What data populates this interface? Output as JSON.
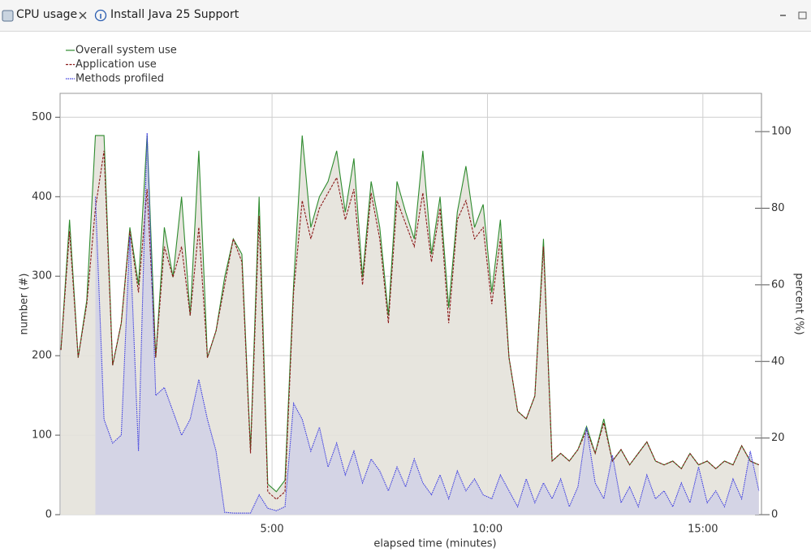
{
  "tabs": [
    {
      "label": "CPU usage"
    },
    {
      "label": "Install Java 25 Support"
    }
  ],
  "chart_data": {
    "type": "line",
    "xlabel": "elapsed time (minutes)",
    "ylabel": "number (#)",
    "y2label": "percent (%)",
    "x": [
      0.1,
      0.3,
      0.5,
      0.7,
      0.9,
      1.1,
      1.3,
      1.5,
      1.7,
      1.9,
      2.1,
      2.3,
      2.5,
      2.7,
      2.9,
      3.1,
      3.3,
      3.5,
      3.7,
      3.9,
      4.1,
      4.3,
      4.5,
      4.7,
      4.9,
      5.1,
      5.3,
      5.5,
      5.7,
      5.9,
      6.1,
      6.3,
      6.5,
      6.7,
      6.9,
      7.1,
      7.3,
      7.5,
      7.7,
      7.9,
      8.1,
      8.3,
      8.5,
      8.7,
      8.9,
      9.1,
      9.3,
      9.5,
      9.7,
      9.9,
      10.1,
      10.3,
      10.5,
      10.7,
      10.9,
      11.1,
      11.3,
      11.5,
      11.7,
      11.9,
      12.1,
      12.3,
      12.5,
      12.7,
      12.9,
      13.1,
      13.3,
      13.5,
      13.7,
      13.9,
      14.1,
      14.3,
      14.5,
      14.7,
      14.9,
      15.1,
      15.3,
      15.5,
      15.7,
      15.9,
      16.1,
      16.3
    ],
    "series": [
      {
        "name": "Overall system use",
        "color": "#2e8b2e",
        "axis": "y2",
        "values": [
          43,
          77,
          41,
          56,
          99,
          99,
          39,
          50,
          75,
          60,
          99,
          41,
          75,
          62,
          83,
          52,
          95,
          41,
          48,
          62,
          72,
          68,
          17,
          83,
          8,
          6,
          9,
          60,
          99,
          75,
          83,
          87,
          95,
          79,
          93,
          62,
          87,
          75,
          52,
          87,
          79,
          72,
          95,
          68,
          83,
          54,
          79,
          91,
          75,
          81,
          58,
          77,
          41,
          27,
          25,
          31,
          72,
          14,
          16,
          14,
          17,
          23,
          16,
          25,
          14,
          17,
          13,
          16,
          19,
          14,
          13,
          14,
          12,
          16,
          13,
          14,
          12,
          14,
          13,
          18,
          14,
          13
        ]
      },
      {
        "name": "Application use",
        "color": "#8b1a1a",
        "axis": "y2",
        "values": [
          43,
          74,
          41,
          55,
          80,
          95,
          39,
          50,
          74,
          58,
          85,
          41,
          70,
          62,
          70,
          52,
          75,
          41,
          48,
          60,
          72,
          66,
          16,
          78,
          6,
          4,
          6,
          58,
          82,
          72,
          80,
          84,
          88,
          77,
          85,
          60,
          84,
          72,
          50,
          82,
          76,
          70,
          84,
          66,
          80,
          50,
          77,
          82,
          72,
          75,
          55,
          72,
          41,
          27,
          25,
          31,
          70,
          14,
          16,
          14,
          17,
          22,
          16,
          24,
          14,
          17,
          13,
          16,
          19,
          14,
          13,
          14,
          12,
          16,
          13,
          14,
          12,
          14,
          13,
          18,
          14,
          13
        ]
      },
      {
        "name": "Methods profiled",
        "color": "#3a3ae0",
        "values": [
          null,
          null,
          null,
          null,
          400,
          120,
          90,
          100,
          350,
          80,
          480,
          150,
          160,
          130,
          100,
          120,
          170,
          120,
          80,
          3,
          2,
          2,
          2,
          25,
          8,
          5,
          10,
          140,
          120,
          80,
          110,
          60,
          90,
          50,
          80,
          40,
          70,
          55,
          30,
          60,
          35,
          70,
          40,
          25,
          50,
          20,
          55,
          30,
          45,
          25,
          20,
          50,
          30,
          10,
          45,
          15,
          40,
          20,
          45,
          10,
          35,
          110,
          40,
          20,
          75,
          15,
          35,
          10,
          50,
          20,
          30,
          10,
          40,
          15,
          60,
          15,
          30,
          10,
          45,
          20,
          80,
          30
        ]
      }
    ],
    "xlim": [
      0.08,
      16.36
    ],
    "xticks": [
      {
        "value": 5,
        "label": "5:00"
      },
      {
        "value": 10,
        "label": "10:00"
      },
      {
        "value": 15,
        "label": "15:00"
      }
    ],
    "ylim": [
      0,
      530
    ],
    "yticks": [
      0,
      100,
      200,
      300,
      400,
      500
    ],
    "y2lim": [
      0,
      110
    ],
    "y2ticks": [
      0,
      20,
      40,
      60,
      80,
      100
    ],
    "grid": true
  }
}
